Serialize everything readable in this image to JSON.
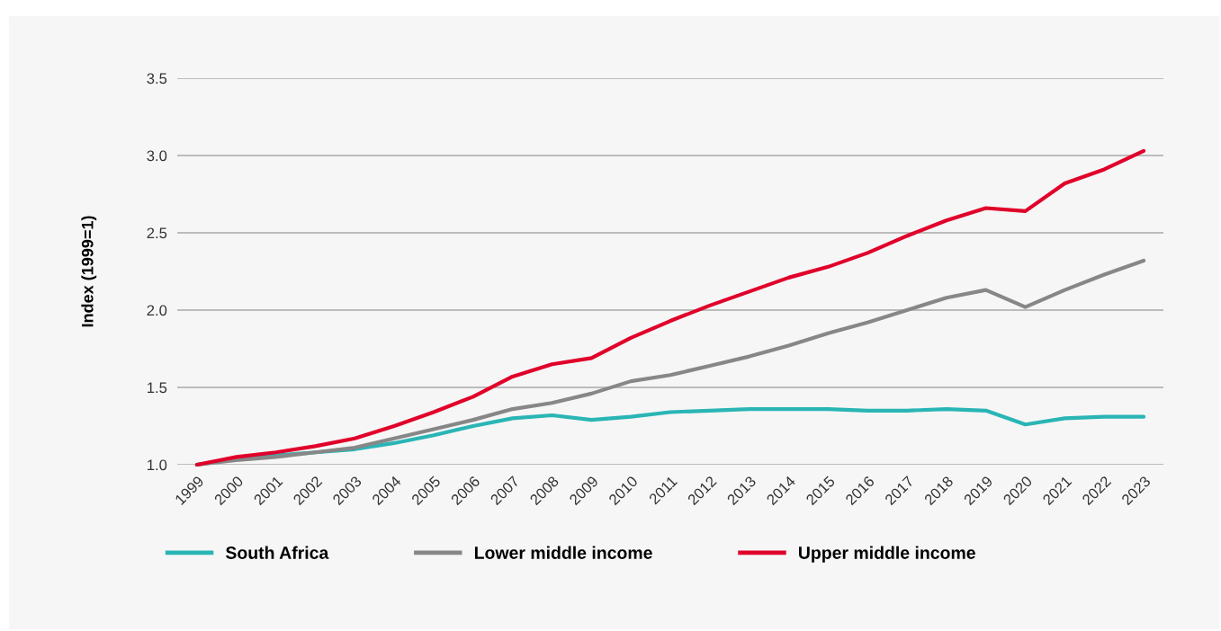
{
  "chart_data": {
    "type": "line",
    "ylabel": "Index (1999=1)",
    "categories": [
      "1999",
      "2000",
      "2001",
      "2002",
      "2003",
      "2004",
      "2005",
      "2006",
      "2007",
      "2008",
      "2009",
      "2010",
      "2011",
      "2012",
      "2013",
      "2014",
      "2015",
      "2016",
      "2017",
      "2018",
      "2019",
      "2020",
      "2021",
      "2022",
      "2023"
    ],
    "series": [
      {
        "name": "South Africa",
        "color": "#2ab5b5",
        "values": [
          1.0,
          1.04,
          1.06,
          1.08,
          1.1,
          1.14,
          1.19,
          1.25,
          1.3,
          1.32,
          1.29,
          1.31,
          1.34,
          1.35,
          1.36,
          1.36,
          1.36,
          1.35,
          1.35,
          1.36,
          1.35,
          1.26,
          1.3,
          1.31,
          1.31
        ]
      },
      {
        "name": "Lower middle income",
        "color": "#878787",
        "values": [
          1.0,
          1.03,
          1.05,
          1.08,
          1.11,
          1.17,
          1.23,
          1.29,
          1.36,
          1.4,
          1.46,
          1.54,
          1.58,
          1.64,
          1.7,
          1.77,
          1.85,
          1.92,
          2.0,
          2.08,
          2.13,
          2.02,
          2.13,
          2.23,
          2.32
        ]
      },
      {
        "name": "Upper middle income",
        "color": "#e0002a",
        "values": [
          1.0,
          1.05,
          1.08,
          1.12,
          1.17,
          1.25,
          1.34,
          1.44,
          1.57,
          1.65,
          1.69,
          1.82,
          1.93,
          2.03,
          2.12,
          2.21,
          2.28,
          2.37,
          2.48,
          2.58,
          2.66,
          2.64,
          2.82,
          2.91,
          3.03
        ]
      }
    ],
    "ylim": [
      1.0,
      3.5
    ],
    "yticks": [
      {
        "value": 1.0,
        "label": "1.0"
      },
      {
        "value": 1.5,
        "label": "1.5"
      },
      {
        "value": 2.0,
        "label": "2.0"
      },
      {
        "value": 2.5,
        "label": "2.5"
      },
      {
        "value": 3.0,
        "label": "3.0"
      },
      {
        "value": 3.5,
        "label": "3.5"
      }
    ],
    "grid": "y",
    "legend": "bottom",
    "marker": "none",
    "line_style": "solid"
  }
}
